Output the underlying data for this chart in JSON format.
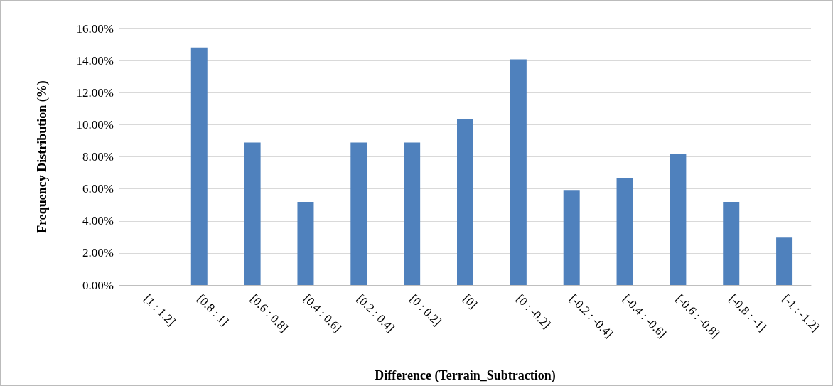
{
  "chart_data": {
    "type": "bar",
    "xlabel": "Difference (Terrain_Subtraction)",
    "ylabel": "Frequency Distribution (%)",
    "categories": [
      "[1 : 1.2]",
      "[0.8 : 1]",
      "[0.6 : 0.8]",
      "[0.4 : 0.6]",
      "[0.2 : 0.4]",
      "[0 : 0.2]",
      "[0]",
      "[0 : -0.2]",
      "[-0.2 : -0.4]",
      "[-0.4 : -0.6]",
      "[-0.6 : -0.8]",
      "[-0.8 : -1]",
      "[-1 : -1.2]"
    ],
    "values": [
      0,
      14.81,
      8.89,
      5.19,
      8.89,
      8.89,
      10.37,
      14.07,
      5.93,
      6.67,
      8.15,
      5.19,
      2.96
    ],
    "color": "#4f81bd",
    "ylim": [
      0,
      16
    ],
    "yticks": [
      {
        "value": 0,
        "label": "0.00%"
      },
      {
        "value": 2,
        "label": "2.00%"
      },
      {
        "value": 4,
        "label": "4.00%"
      },
      {
        "value": 6,
        "label": "6.00%"
      },
      {
        "value": 8,
        "label": "8.00%"
      },
      {
        "value": 10,
        "label": "10.00%"
      },
      {
        "value": 12,
        "label": "12.00%"
      },
      {
        "value": 14,
        "label": "14.00%"
      },
      {
        "value": 16,
        "label": "16.00%"
      }
    ],
    "grid": "y"
  }
}
